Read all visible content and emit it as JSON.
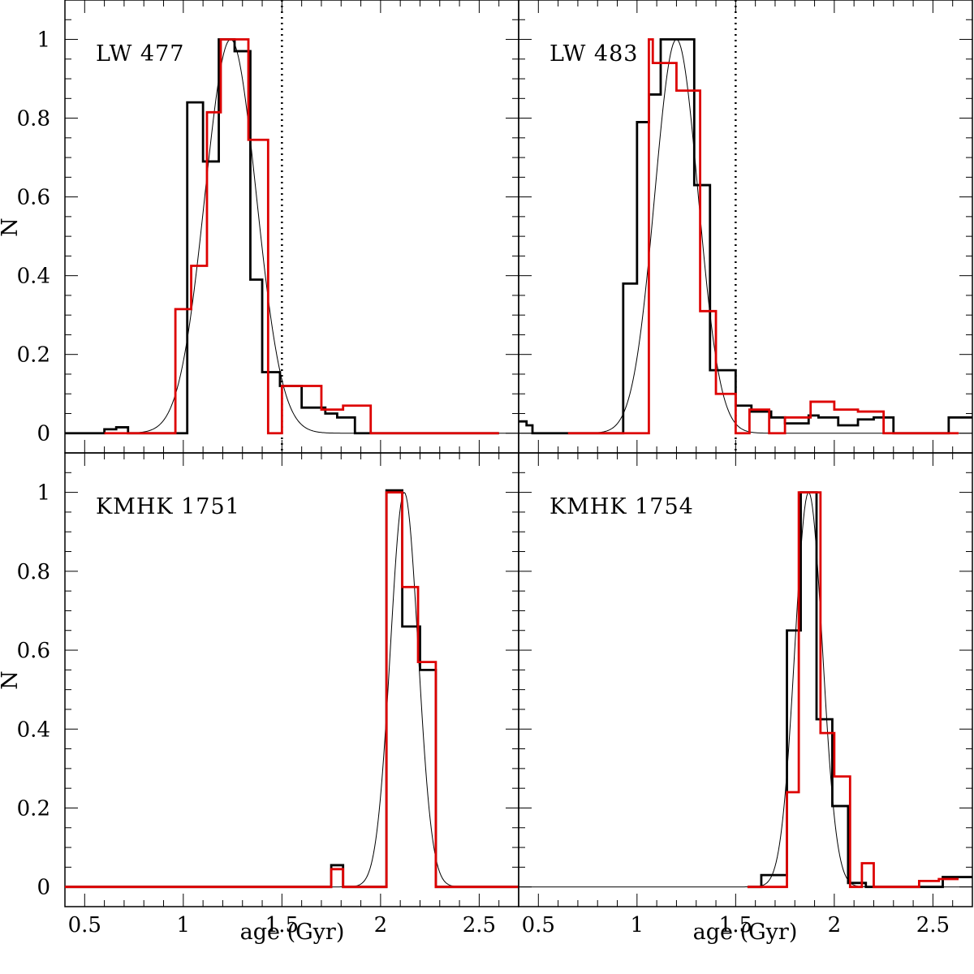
{
  "figure": {
    "xlabel": "age (Gyr)",
    "ylabel": "N",
    "xlim": [
      0.4,
      2.7
    ],
    "ylim": [
      -0.05,
      1.1
    ],
    "x_ticks": [
      "0.5",
      "1",
      "1.5",
      "2",
      "2.5"
    ],
    "y_ticks": [
      "0",
      "0.2",
      "0.4",
      "0.6",
      "0.8",
      "1"
    ],
    "colors": {
      "series_a": "#000000",
      "series_b": "#dd0000",
      "fit": "#000000",
      "marker": "#000000"
    }
  },
  "chart_data": [
    {
      "type": "histogram",
      "panel": "top-left",
      "title": "LW 477",
      "xlim": [
        0.4,
        2.7
      ],
      "ylim": [
        -0.05,
        1.1
      ],
      "vline": 1.5,
      "gaussian": {
        "center": 1.24,
        "sigma": 0.13,
        "amplitude": 1.0
      },
      "series": [
        {
          "color": "#000000",
          "edges": [
            0.4,
            0.6,
            0.66,
            0.72,
            1.02,
            1.1,
            1.18,
            1.26,
            1.34,
            1.4,
            1.49,
            1.6,
            1.72,
            1.78,
            1.87,
            1.95,
            2.6
          ],
          "values": [
            0,
            0.01,
            0.015,
            0,
            0.84,
            0.69,
            1.0,
            0.97,
            0.39,
            0.155,
            0.12,
            0.065,
            0.05,
            0.04,
            0,
            0
          ]
        },
        {
          "color": "#dd0000",
          "edges": [
            0.6,
            0.96,
            1.04,
            1.12,
            1.19,
            1.27,
            1.33,
            1.43,
            1.5,
            1.59,
            1.7,
            1.81,
            1.95,
            2.6
          ],
          "values": [
            0,
            0.315,
            0.425,
            0.815,
            1.0,
            1.0,
            0.745,
            0,
            0.12,
            0.12,
            0.06,
            0.07,
            0
          ]
        }
      ]
    },
    {
      "type": "histogram",
      "panel": "top-right",
      "title": "LW 483",
      "xlim": [
        0.4,
        2.7
      ],
      "ylim": [
        -0.05,
        1.1
      ],
      "vline": 1.5,
      "gaussian": {
        "center": 1.2,
        "sigma": 0.11,
        "amplitude": 1.0
      },
      "series": [
        {
          "color": "#000000",
          "edges": [
            0.4,
            0.44,
            0.47,
            0.93,
            1.0,
            1.06,
            1.12,
            1.2,
            1.29,
            1.37,
            1.5,
            1.58,
            1.68,
            1.75,
            1.87,
            1.92,
            2.02,
            2.12,
            2.2,
            2.3,
            2.58,
            2.7
          ],
          "values": [
            0.03,
            0.02,
            0,
            0.38,
            0.79,
            0.86,
            1.0,
            1.0,
            0.63,
            0.16,
            0.07,
            0.055,
            0.04,
            0.025,
            0.045,
            0.04,
            0.02,
            0.035,
            0.04,
            0,
            0.04
          ]
        },
        {
          "color": "#dd0000",
          "edges": [
            0.65,
            1.06,
            1.08,
            1.14,
            1.2,
            1.26,
            1.32,
            1.4,
            1.5,
            1.57,
            1.67,
            1.75,
            1.88,
            2.0,
            2.12,
            2.25,
            2.63
          ],
          "values": [
            0,
            1.0,
            0.94,
            0.94,
            0.87,
            0.87,
            0.31,
            0.1,
            0.0,
            0.06,
            0.0,
            0.04,
            0.08,
            0.06,
            0.055,
            0
          ]
        }
      ]
    },
    {
      "type": "histogram",
      "panel": "bottom-left",
      "title": "KMHK 1751",
      "xlim": [
        0.4,
        2.7
      ],
      "ylim": [
        -0.05,
        1.1
      ],
      "gaussian": {
        "center": 2.12,
        "sigma": 0.07,
        "amplitude": 1.0
      },
      "series": [
        {
          "color": "#000000",
          "edges": [
            0.4,
            1.75,
            1.81,
            2.03,
            2.11,
            2.2,
            2.28,
            2.7
          ],
          "values": [
            0,
            0.055,
            0,
            1.005,
            0.66,
            0.55,
            0
          ]
        },
        {
          "color": "#dd0000",
          "edges": [
            0.4,
            1.75,
            1.81,
            2.03,
            2.11,
            2.19,
            2.28,
            2.7
          ],
          "values": [
            0,
            0.045,
            0,
            1.0,
            0.76,
            0.57,
            0
          ]
        }
      ]
    },
    {
      "type": "histogram",
      "panel": "bottom-right",
      "title": "KMHK 1754",
      "xlim": [
        0.4,
        2.7
      ],
      "ylim": [
        -0.05,
        1.1
      ],
      "gaussian": {
        "center": 1.87,
        "sigma": 0.07,
        "amplitude": 1.0
      },
      "series": [
        {
          "color": "#000000",
          "edges": [
            1.56,
            1.63,
            1.76,
            1.83,
            1.91,
            1.99,
            2.07,
            2.16,
            2.55,
            2.7
          ],
          "values": [
            0.0,
            0.03,
            0.65,
            1.0,
            0.425,
            0.205,
            0.01,
            0,
            0.025
          ]
        },
        {
          "color": "#dd0000",
          "edges": [
            1.56,
            1.76,
            1.82,
            1.86,
            1.93,
            2.0,
            2.08,
            2.14,
            2.2,
            2.28,
            2.43,
            2.53,
            2.63
          ],
          "values": [
            0,
            0.24,
            1.0,
            1.0,
            0.39,
            0.28,
            0,
            0.06,
            0,
            0,
            0.015,
            0.02
          ]
        }
      ]
    }
  ]
}
